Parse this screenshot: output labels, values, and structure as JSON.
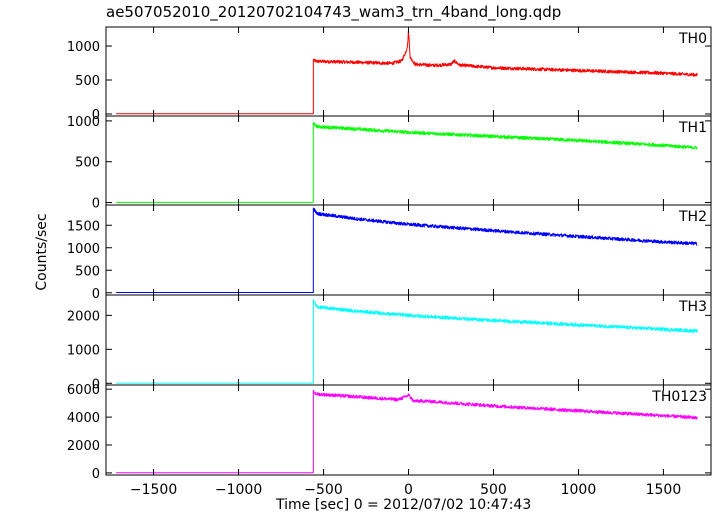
{
  "chart_data": {
    "type": "line",
    "title": "ae507052010_20120702104743_wam3_trn_4band_long.qdp",
    "xlabel": "Time [sec] 0 = 2012/07/02 10:47:43",
    "ylabel": "Counts/sec",
    "xlim": [
      -1780,
      1780
    ],
    "xticks": [
      -1500,
      -1000,
      -500,
      0,
      500,
      1000,
      1500
    ],
    "grid": false,
    "panels": [
      {
        "name": "TH0",
        "color": "#ff0000",
        "ylim": [
          -30,
          1280
        ],
        "yticks": [
          0,
          500,
          1000
        ],
        "segments": [
          {
            "x": [
              -1720,
              -560
            ],
            "y": [
              3,
              3
            ]
          },
          {
            "x": [
              -560,
              -540,
              -300,
              -100,
              -40,
              -15,
              -5,
              0,
              10,
              40,
              150,
              250,
              270,
              300,
              500,
              1000,
              1500,
              1700
            ],
            "y": [
              790,
              775,
              760,
              745,
              780,
              920,
              1020,
              1240,
              830,
              730,
              715,
              730,
              780,
              720,
              680,
              640,
              600,
              575
            ]
          }
        ]
      },
      {
        "name": "TH1",
        "color": "#00ff00",
        "ylim": [
          -30,
          1060
        ],
        "yticks": [
          0,
          500,
          1000
        ],
        "segments": [
          {
            "x": [
              -1720,
              -560
            ],
            "y": [
              2,
              2
            ]
          },
          {
            "x": [
              -560,
              -540,
              -300,
              0,
              500,
              1000,
              1500,
              1700
            ],
            "y": [
              980,
              930,
              900,
              860,
              810,
              760,
              700,
              670
            ]
          }
        ]
      },
      {
        "name": "TH2",
        "color": "#0000ff",
        "ylim": [
          -50,
          1950
        ],
        "yticks": [
          0,
          500,
          1000,
          1500
        ],
        "segments": [
          {
            "x": [
              -1720,
              -560
            ],
            "y": [
              5,
              5
            ]
          },
          {
            "x": [
              -560,
              -540,
              -300,
              0,
              500,
              1000,
              1500,
              1700
            ],
            "y": [
              1880,
              1760,
              1640,
              1520,
              1380,
              1250,
              1130,
              1090
            ]
          }
        ]
      },
      {
        "name": "TH3",
        "color": "#00ffff",
        "ylim": [
          -50,
          2600
        ],
        "yticks": [
          0,
          1000,
          2000
        ],
        "segments": [
          {
            "x": [
              -1720,
              -560
            ],
            "y": [
              5,
              5
            ]
          },
          {
            "x": [
              -560,
              -540,
              -300,
              0,
              500,
              1000,
              1500,
              1700
            ],
            "y": [
              2450,
              2250,
              2120,
              2000,
              1850,
              1720,
              1590,
              1540
            ]
          }
        ]
      },
      {
        "name": "TH0123",
        "color": "#ff00ff",
        "ylim": [
          -150,
          6300
        ],
        "yticks": [
          0,
          2000,
          4000,
          6000
        ],
        "segments": [
          {
            "x": [
              -1720,
              -560
            ],
            "y": [
              10,
              10
            ]
          },
          {
            "x": [
              -560,
              -540,
              -300,
              -60,
              -10,
              0,
              30,
              100,
              500,
              1000,
              1500,
              1700
            ],
            "y": [
              5800,
              5650,
              5450,
              5250,
              5500,
              5600,
              5150,
              5150,
              4800,
              4450,
              4100,
              3950
            ]
          }
        ]
      }
    ]
  }
}
